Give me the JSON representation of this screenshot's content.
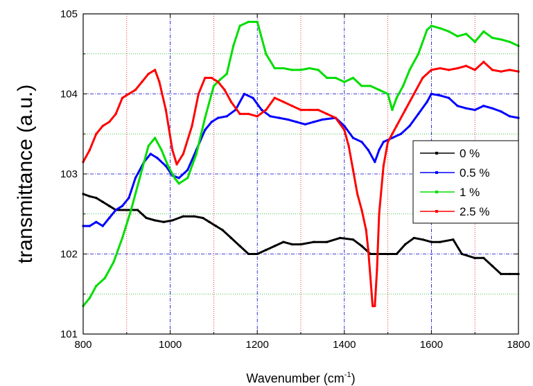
{
  "chart_data": {
    "type": "line",
    "xlabel": "Wavenumber  (cm",
    "xlabel_sup": "-1",
    "xlabel_end": ")",
    "ylabel": "transmittance (a.u.)",
    "xlim": [
      800,
      1800
    ],
    "ylim": [
      101,
      105
    ],
    "xticks": [
      "800",
      "1000",
      "1200",
      "1400",
      "1600",
      "1800"
    ],
    "yticks": [
      "101",
      "102",
      "103",
      "104",
      "105"
    ],
    "grid": {
      "major": "blue dash-dot",
      "minor_x": "red dotted",
      "minor_y": "green dotted"
    },
    "legend_position": "right",
    "series": [
      {
        "name": "0 %",
        "color": "#000000",
        "x": [
          800,
          815,
          830,
          845,
          860,
          875,
          890,
          905,
          925,
          945,
          965,
          985,
          1005,
          1030,
          1055,
          1075,
          1090,
          1105,
          1120,
          1140,
          1160,
          1180,
          1200,
          1220,
          1240,
          1260,
          1280,
          1300,
          1330,
          1360,
          1390,
          1420,
          1440,
          1460,
          1480,
          1500,
          1520,
          1540,
          1560,
          1580,
          1600,
          1620,
          1650,
          1670,
          1700,
          1720,
          1740,
          1760,
          1780,
          1800
        ],
        "y": [
          102.75,
          102.72,
          102.7,
          102.65,
          102.6,
          102.55,
          102.55,
          102.55,
          102.55,
          102.45,
          102.42,
          102.4,
          102.42,
          102.47,
          102.47,
          102.45,
          102.4,
          102.35,
          102.3,
          102.2,
          102.1,
          102.0,
          102.0,
          102.05,
          102.1,
          102.15,
          102.12,
          102.12,
          102.15,
          102.15,
          102.2,
          102.18,
          102.1,
          102.0,
          102.0,
          102.0,
          102.0,
          102.12,
          102.2,
          102.18,
          102.15,
          102.15,
          102.18,
          102.0,
          101.95,
          101.95,
          101.85,
          101.75,
          101.75,
          101.75
        ]
      },
      {
        "name": "0.5 %",
        "color": "#0000ff",
        "x": [
          800,
          815,
          830,
          845,
          860,
          875,
          890,
          905,
          920,
          940,
          955,
          970,
          990,
          1005,
          1020,
          1040,
          1060,
          1080,
          1095,
          1110,
          1130,
          1150,
          1170,
          1190,
          1210,
          1230,
          1250,
          1270,
          1290,
          1310,
          1330,
          1350,
          1380,
          1400,
          1420,
          1440,
          1455,
          1470,
          1480,
          1490,
          1510,
          1530,
          1550,
          1570,
          1590,
          1600,
          1620,
          1640,
          1660,
          1680,
          1700,
          1720,
          1740,
          1760,
          1780,
          1800
        ],
        "y": [
          102.35,
          102.35,
          102.4,
          102.35,
          102.45,
          102.55,
          102.6,
          102.7,
          102.95,
          103.15,
          103.25,
          103.2,
          103.1,
          102.98,
          102.95,
          103.05,
          103.3,
          103.55,
          103.65,
          103.7,
          103.72,
          103.8,
          104.0,
          103.95,
          103.8,
          103.72,
          103.7,
          103.68,
          103.65,
          103.62,
          103.65,
          103.68,
          103.7,
          103.6,
          103.45,
          103.4,
          103.3,
          103.15,
          103.3,
          103.4,
          103.45,
          103.5,
          103.6,
          103.75,
          103.9,
          104.0,
          103.98,
          103.95,
          103.85,
          103.82,
          103.8,
          103.85,
          103.82,
          103.78,
          103.72,
          103.7
        ]
      },
      {
        "name": "1 %",
        "color": "#00dd00",
        "x": [
          800,
          815,
          830,
          850,
          870,
          890,
          910,
          930,
          950,
          965,
          980,
          995,
          1010,
          1020,
          1040,
          1060,
          1080,
          1100,
          1115,
          1130,
          1145,
          1160,
          1180,
          1200,
          1220,
          1240,
          1260,
          1280,
          1300,
          1320,
          1340,
          1360,
          1380,
          1400,
          1420,
          1440,
          1460,
          1480,
          1500,
          1510,
          1520,
          1535,
          1550,
          1570,
          1590,
          1600,
          1620,
          1640,
          1660,
          1680,
          1700,
          1720,
          1740,
          1760,
          1780,
          1800
        ],
        "y": [
          101.35,
          101.45,
          101.6,
          101.7,
          101.9,
          102.2,
          102.55,
          102.95,
          103.35,
          103.45,
          103.3,
          103.1,
          102.95,
          102.88,
          102.95,
          103.25,
          103.7,
          104.1,
          104.18,
          104.25,
          104.6,
          104.85,
          104.9,
          104.9,
          104.5,
          104.32,
          104.32,
          104.3,
          104.3,
          104.32,
          104.3,
          104.2,
          104.2,
          104.15,
          104.2,
          104.1,
          104.1,
          104.05,
          104.0,
          103.8,
          103.95,
          104.1,
          104.3,
          104.5,
          104.8,
          104.85,
          104.82,
          104.78,
          104.72,
          104.75,
          104.65,
          104.78,
          104.7,
          104.68,
          104.65,
          104.6
        ]
      },
      {
        "name": "2.5 %",
        "color": "#ff0000",
        "x": [
          800,
          815,
          830,
          845,
          860,
          875,
          890,
          905,
          920,
          935,
          950,
          965,
          975,
          990,
          1005,
          1015,
          1030,
          1050,
          1065,
          1080,
          1095,
          1110,
          1125,
          1140,
          1160,
          1180,
          1200,
          1220,
          1240,
          1260,
          1280,
          1300,
          1320,
          1340,
          1360,
          1380,
          1400,
          1410,
          1420,
          1430,
          1440,
          1450,
          1455,
          1460,
          1465,
          1470,
          1475,
          1480,
          1490,
          1500,
          1510,
          1520,
          1540,
          1560,
          1580,
          1600,
          1620,
          1640,
          1660,
          1680,
          1700,
          1720,
          1740,
          1760,
          1780,
          1800
        ],
        "y": [
          103.15,
          103.3,
          103.5,
          103.6,
          103.65,
          103.75,
          103.95,
          104.0,
          104.05,
          104.15,
          104.25,
          104.3,
          104.15,
          103.8,
          103.3,
          103.12,
          103.25,
          103.6,
          104.0,
          104.2,
          104.2,
          104.15,
          104.05,
          103.9,
          103.75,
          103.75,
          103.72,
          103.8,
          103.95,
          103.9,
          103.85,
          103.8,
          103.8,
          103.8,
          103.75,
          103.7,
          103.55,
          103.35,
          103.05,
          102.75,
          102.55,
          102.3,
          102.05,
          101.7,
          101.35,
          101.35,
          101.8,
          102.5,
          103.1,
          103.4,
          103.5,
          103.6,
          103.8,
          104.0,
          104.2,
          104.3,
          104.32,
          104.3,
          104.32,
          104.35,
          104.3,
          104.4,
          104.3,
          104.28,
          104.3,
          104.28
        ]
      }
    ]
  }
}
